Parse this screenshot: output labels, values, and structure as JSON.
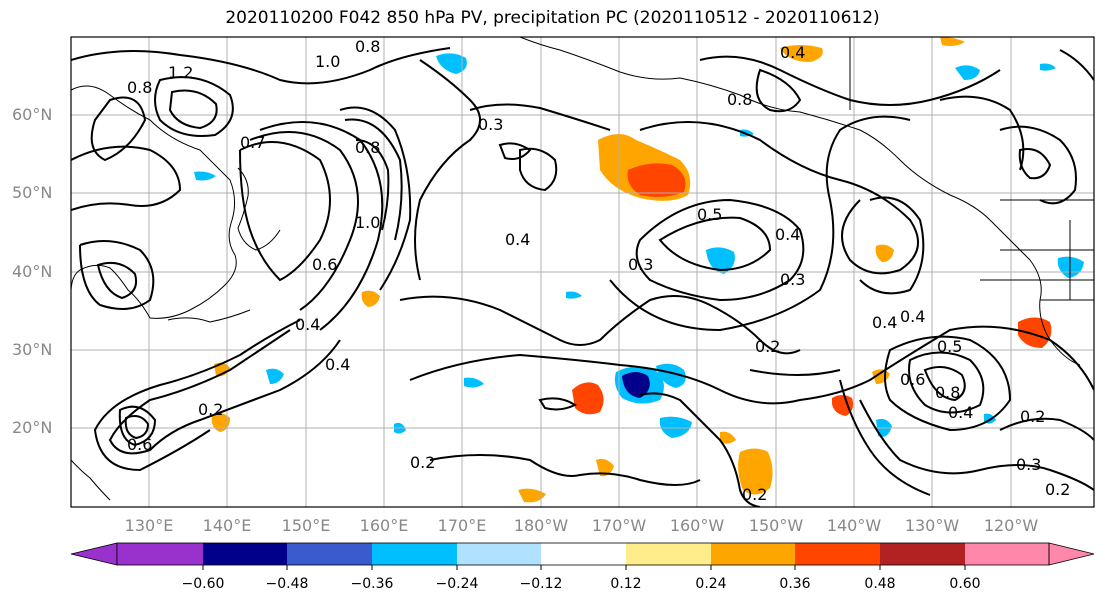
{
  "title": "2020110200 F042 850 hPa PV, precipitation PC (2020110512 - 2020110612)",
  "map": {
    "lon_labels": [
      "130°E",
      "140°E",
      "150°E",
      "160°E",
      "170°E",
      "180°W",
      "170°W",
      "160°W",
      "150°W",
      "140°W",
      "130°W",
      "120°W"
    ],
    "lat_labels": [
      "60°N",
      "50°N",
      "40°N",
      "30°N",
      "20°N"
    ],
    "contour_labels": [
      "0.8",
      "1.0",
      "1.2",
      "0.8",
      "0.7",
      "1.0",
      "0.8",
      "0.6",
      "0.4",
      "0.3",
      "0.4",
      "0.5",
      "0.4",
      "0.3",
      "0.3",
      "0.2",
      "0.4",
      "0.2",
      "0.6",
      "0.2",
      "0.4",
      "0.4",
      "0.5",
      "0.6",
      "0.8",
      "0.4",
      "0.2",
      "0.3",
      "0.2",
      "0.8",
      "0.4",
      "0.2"
    ],
    "gridlines": true
  },
  "colorbar": {
    "tick_labels": [
      "−0.60",
      "−0.48",
      "−0.36",
      "−0.24",
      "−0.12",
      "0.12",
      "0.24",
      "0.36",
      "0.48",
      "0.60"
    ],
    "colors": [
      "#9932cc",
      "#00008b",
      "#3a5bcd",
      "#00bfff",
      "#b0e2ff",
      "#ffffff",
      "#ffec8b",
      "#ffa500",
      "#ff4500",
      "#b22222",
      "#ff88aa"
    ]
  },
  "shading_colors": {
    "pos_light": "#ffec8b",
    "pos_mid": "#ffa500",
    "pos_strong": "#ff4500",
    "neg_light": "#b0e2ff",
    "neg_mid": "#00bfff",
    "neg_strong": "#00008b"
  }
}
